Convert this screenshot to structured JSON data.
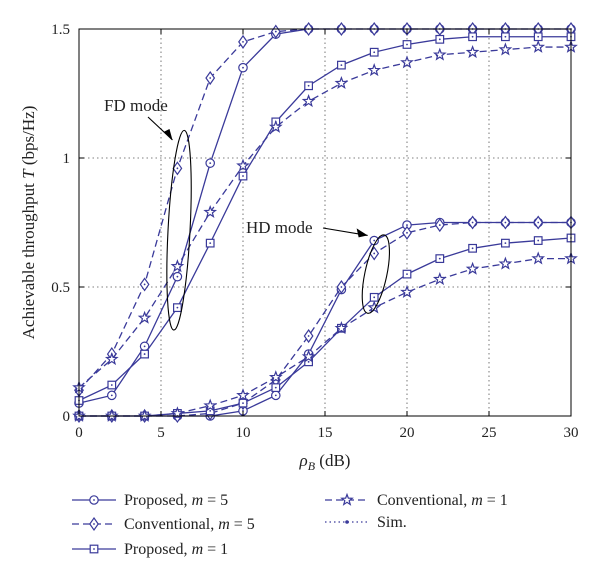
{
  "chart_data": {
    "type": "line",
    "xlabel_main": "ρ",
    "xlabel_sub": "B",
    "xlabel_unit": " (dB)",
    "ylabel_main": "Achievable throughput ",
    "ylabel_var": "T",
    "ylabel_unit": " (bps/Hz)",
    "xlim": [
      0,
      30
    ],
    "ylim": [
      0,
      1.5
    ],
    "xticks": [
      0,
      5,
      10,
      15,
      20,
      25,
      30
    ],
    "yticks": [
      0,
      0.5,
      1,
      1.5
    ],
    "xtick_labels": [
      "0",
      "5",
      "10",
      "15",
      "20",
      "25",
      "30"
    ],
    "ytick_labels": [
      "0",
      "0.5",
      "1",
      "1.5"
    ],
    "grid": true,
    "legend_position": "below",
    "color": "#3a3a9a",
    "annotations": [
      {
        "text": "FD mode",
        "target_x": 6,
        "target_y": 0.85
      },
      {
        "text": "HD mode",
        "target_x": 18,
        "target_y": 0.68
      }
    ],
    "series": [
      {
        "name": "Proposed, m = 5",
        "legend_pre": "Proposed, ",
        "legend_var": "m",
        "legend_post": " = 5",
        "group": "FD",
        "marker": "circle",
        "dash": "solid",
        "x": [
          0,
          2,
          4,
          6,
          8,
          10,
          12,
          14,
          16,
          18,
          20,
          22,
          24,
          26,
          28,
          30
        ],
        "y": [
          0.05,
          0.08,
          0.27,
          0.54,
          0.98,
          1.35,
          1.48,
          1.5,
          1.5,
          1.5,
          1.5,
          1.5,
          1.5,
          1.5,
          1.5,
          1.5
        ]
      },
      {
        "name": "Conventional, m = 5",
        "legend_pre": "Conventional, ",
        "legend_var": "m",
        "legend_post": " = 5",
        "group": "FD",
        "marker": "diamond",
        "dash": "dashed",
        "x": [
          0,
          2,
          4,
          6,
          8,
          10,
          12,
          14,
          16,
          18,
          20,
          22,
          24,
          26,
          28,
          30
        ],
        "y": [
          0.1,
          0.24,
          0.51,
          0.96,
          1.31,
          1.45,
          1.49,
          1.5,
          1.5,
          1.5,
          1.5,
          1.5,
          1.5,
          1.5,
          1.5,
          1.5
        ]
      },
      {
        "name": "Proposed, m = 1",
        "legend_pre": "Proposed, ",
        "legend_var": "m",
        "legend_post": " = 1",
        "group": "FD",
        "marker": "square",
        "dash": "solid",
        "x": [
          0,
          2,
          4,
          6,
          8,
          10,
          12,
          14,
          16,
          18,
          20,
          22,
          24,
          26,
          28,
          30
        ],
        "y": [
          0.06,
          0.12,
          0.24,
          0.42,
          0.67,
          0.93,
          1.14,
          1.28,
          1.36,
          1.41,
          1.44,
          1.46,
          1.47,
          1.47,
          1.47,
          1.47
        ]
      },
      {
        "name": "Conventional, m = 1",
        "legend_pre": "Conventional, ",
        "legend_var": "m",
        "legend_post": " = 1",
        "group": "FD",
        "marker": "star",
        "dash": "dashed",
        "x": [
          0,
          2,
          4,
          6,
          8,
          10,
          12,
          14,
          16,
          18,
          20,
          22,
          24,
          26,
          28,
          30
        ],
        "y": [
          0.11,
          0.22,
          0.38,
          0.58,
          0.79,
          0.97,
          1.12,
          1.22,
          1.29,
          1.34,
          1.37,
          1.4,
          1.41,
          1.42,
          1.43,
          1.43
        ]
      },
      {
        "name": "Proposed, m = 5",
        "group": "HD",
        "marker": "circle",
        "dash": "solid",
        "x": [
          0,
          2,
          4,
          6,
          8,
          10,
          12,
          14,
          16,
          18,
          20,
          22,
          24,
          26,
          28,
          30
        ],
        "y": [
          0,
          0,
          0,
          0,
          0,
          0.02,
          0.08,
          0.24,
          0.49,
          0.68,
          0.74,
          0.75,
          0.75,
          0.75,
          0.75,
          0.75
        ]
      },
      {
        "name": "Conventional, m = 5",
        "group": "HD",
        "marker": "diamond",
        "dash": "dashed",
        "x": [
          0,
          2,
          4,
          6,
          8,
          10,
          12,
          14,
          16,
          18,
          20,
          22,
          24,
          26,
          28,
          30
        ],
        "y": [
          0,
          0,
          0,
          0,
          0.01,
          0.05,
          0.14,
          0.31,
          0.5,
          0.63,
          0.71,
          0.74,
          0.75,
          0.75,
          0.75,
          0.75
        ]
      },
      {
        "name": "Proposed, m = 1",
        "group": "HD",
        "marker": "square",
        "dash": "solid",
        "x": [
          0,
          2,
          4,
          6,
          8,
          10,
          12,
          14,
          16,
          18,
          20,
          22,
          24,
          26,
          28,
          30
        ],
        "y": [
          0,
          0,
          0,
          0.01,
          0.02,
          0.05,
          0.11,
          0.21,
          0.34,
          0.46,
          0.55,
          0.61,
          0.65,
          0.67,
          0.68,
          0.69
        ]
      },
      {
        "name": "Conventional, m = 1",
        "group": "HD",
        "marker": "star",
        "dash": "dashed",
        "x": [
          0,
          2,
          4,
          6,
          8,
          10,
          12,
          14,
          16,
          18,
          20,
          22,
          24,
          26,
          28,
          30
        ],
        "y": [
          0,
          0,
          0,
          0.01,
          0.04,
          0.08,
          0.15,
          0.23,
          0.34,
          0.42,
          0.48,
          0.53,
          0.57,
          0.59,
          0.61,
          0.61
        ]
      }
    ],
    "legend": [
      {
        "pre": "Proposed, ",
        "var": "m",
        "post": " = 5",
        "marker": "circle",
        "dash": "solid"
      },
      {
        "pre": "Conventional, ",
        "var": "m",
        "post": " = 5",
        "marker": "diamond",
        "dash": "dashed"
      },
      {
        "pre": "Proposed, ",
        "var": "m",
        "post": " = 1",
        "marker": "square",
        "dash": "solid"
      },
      {
        "pre": "Conventional, ",
        "var": "m",
        "post": " = 1",
        "marker": "star",
        "dash": "dashed"
      },
      {
        "pre": "Sim.",
        "var": "",
        "post": "",
        "marker": "dot",
        "dash": "dotted"
      }
    ]
  }
}
